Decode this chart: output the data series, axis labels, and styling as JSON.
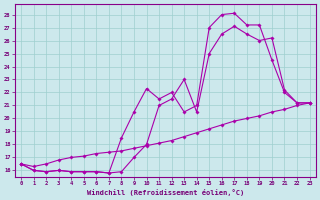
{
  "xlabel": "Windchill (Refroidissement éolien,°C)",
  "bg_color": "#cce8ec",
  "grid_color": "#9fcfcf",
  "line_color": "#aa00aa",
  "spine_color": "#880088",
  "xlim_min": -0.5,
  "xlim_max": 23.5,
  "ylim_min": 15.5,
  "ylim_max": 28.8,
  "xticks": [
    0,
    1,
    2,
    3,
    4,
    5,
    6,
    7,
    8,
    9,
    10,
    11,
    12,
    13,
    14,
    15,
    16,
    17,
    18,
    19,
    20,
    21,
    22,
    23
  ],
  "yticks": [
    16,
    17,
    18,
    19,
    20,
    21,
    22,
    23,
    24,
    25,
    26,
    27,
    28
  ],
  "line1_x": [
    0,
    1,
    2,
    3,
    4,
    5,
    6,
    7,
    8,
    9,
    10,
    11,
    12,
    13,
    14,
    15,
    16,
    17,
    18,
    19,
    20,
    21,
    22,
    23
  ],
  "line1_y": [
    16.5,
    16.0,
    15.9,
    16.0,
    15.9,
    15.9,
    15.9,
    15.8,
    15.9,
    17.0,
    18.0,
    21.0,
    21.5,
    23.0,
    20.5,
    25.0,
    26.5,
    27.1,
    26.5,
    26.0,
    26.2,
    22.2,
    21.2,
    21.2
  ],
  "line2_x": [
    0,
    1,
    2,
    3,
    4,
    5,
    6,
    7,
    8,
    9,
    10,
    11,
    12,
    13,
    14,
    15,
    16,
    17,
    18,
    19,
    20,
    21,
    22,
    23
  ],
  "line2_y": [
    16.5,
    16.0,
    15.9,
    16.0,
    15.9,
    15.9,
    15.9,
    15.8,
    18.5,
    20.5,
    22.3,
    21.5,
    22.0,
    20.5,
    21.0,
    27.0,
    28.0,
    28.1,
    27.2,
    27.2,
    24.5,
    22.0,
    21.2,
    21.2
  ],
  "line3_x": [
    0,
    1,
    2,
    3,
    4,
    5,
    6,
    7,
    8,
    9,
    10,
    11,
    12,
    13,
    14,
    15,
    16,
    17,
    18,
    19,
    20,
    21,
    22,
    23
  ],
  "line3_y": [
    16.5,
    16.3,
    16.5,
    16.8,
    17.0,
    17.1,
    17.3,
    17.4,
    17.5,
    17.7,
    17.9,
    18.1,
    18.3,
    18.6,
    18.9,
    19.2,
    19.5,
    19.8,
    20.0,
    20.2,
    20.5,
    20.7,
    21.0,
    21.2
  ]
}
